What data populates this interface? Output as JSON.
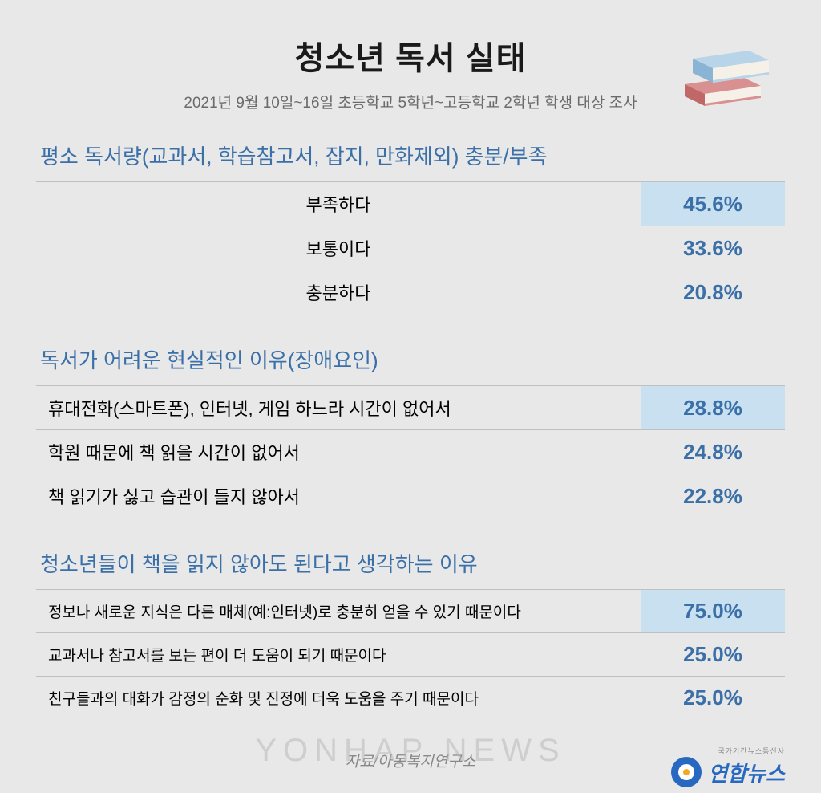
{
  "title": "청소년 독서 실태",
  "subtitle": "2021년 9월 10일~16일 초등학교 5학년~고등학교 2학년 학생 대상 조사",
  "sections": [
    {
      "heading": "평소 독서량(교과서, 학습참고서, 잡지, 만화제외) 충분/부족",
      "label_align": "center",
      "label_size": "normal",
      "rows": [
        {
          "label": "부족하다",
          "value": "45.6%",
          "highlight": true
        },
        {
          "label": "보통이다",
          "value": "33.6%",
          "highlight": false
        },
        {
          "label": "충분하다",
          "value": "20.8%",
          "highlight": false
        }
      ]
    },
    {
      "heading": "독서가 어려운 현실적인 이유(장애요인)",
      "label_align": "left",
      "label_size": "normal",
      "rows": [
        {
          "label": "휴대전화(스마트폰), 인터넷, 게임 하느라 시간이 없어서",
          "value": "28.8%",
          "highlight": true
        },
        {
          "label": "학원 때문에 책 읽을 시간이 없어서",
          "value": "24.8%",
          "highlight": false
        },
        {
          "label": "책 읽기가 싫고 습관이 들지 않아서",
          "value": "22.8%",
          "highlight": false
        }
      ]
    },
    {
      "heading": "청소년들이 책을 읽지 않아도 된다고 생각하는 이유",
      "label_align": "left",
      "label_size": "small",
      "rows": [
        {
          "label": "정보나 새로운 지식은 다른 매체(예:인터넷)로 충분히 얻을 수 있기 때문이다",
          "value": "75.0%",
          "highlight": true
        },
        {
          "label": "교과서나 참고서를 보는 편이 더 도움이 되기 때문이다",
          "value": "25.0%",
          "highlight": false
        },
        {
          "label": "친구들과의 대화가 감정의 순화 및 진정에 더욱 도움을 주기 때문이다",
          "value": "25.0%",
          "highlight": false
        }
      ]
    }
  ],
  "source": "자료/아동복지연구소",
  "watermark": "YONHAP NEWS",
  "logo_text": "연합뉴스",
  "logo_sub": "국가기간뉴스통신사",
  "colors": {
    "background": "#e8e8e8",
    "title_text": "#1a1a1a",
    "subtitle_text": "#6a6a6a",
    "section_heading": "#3a6fa8",
    "value_text": "#3a6fa8",
    "highlight_bg": "#c8e0f0",
    "border": "#c0c0c0",
    "logo_blue": "#2868c0"
  },
  "books_svg": {
    "top_color": "#b8d4e8",
    "top_edge": "#8ab4d4",
    "bottom_color": "#d89090",
    "bottom_edge": "#c06868",
    "page_color": "#f5f0e8"
  }
}
